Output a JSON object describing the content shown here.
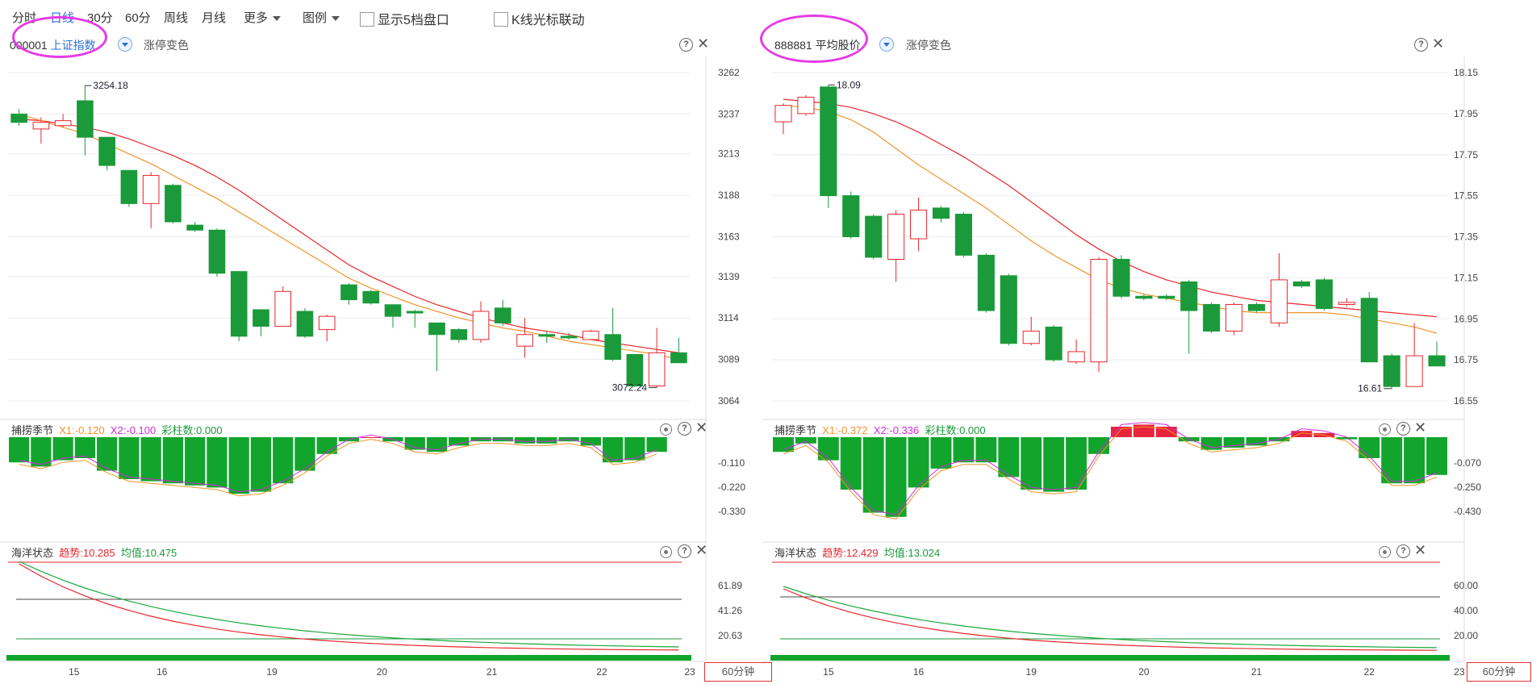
{
  "toolbar": {
    "tabs": [
      "分时",
      "日线",
      "30分",
      "60分",
      "周线",
      "月线"
    ],
    "active_tab": "日线",
    "more_label": "更多",
    "legend_label": "图例",
    "checkbox_depth": "显示5档盘口",
    "checkbox_cursor_link": "K线光标联动"
  },
  "colors": {
    "up": "#e8262d",
    "down": "#1a9a3a",
    "ma_short": "#f0942a",
    "ma_long": "#e8262d",
    "highlight": "#e63be6",
    "accent": "#2a6ed8"
  },
  "left": {
    "code": "000001",
    "name": "上证指数",
    "tag": "涨停变色",
    "y_axis": [
      "3262",
      "3237",
      "3213",
      "3188",
      "3163",
      "3139",
      "3114",
      "3089",
      "3064"
    ],
    "high_label": "3254.18",
    "low_label": "3072.24",
    "osc": {
      "title": "捕捞季节",
      "x1": "X1:-0.120",
      "x2": "X2:-0.100",
      "bars": "彩柱数:0.000",
      "axis": [
        "-0.110",
        "-0.220",
        "-0.330"
      ]
    },
    "ocean": {
      "title": "海洋状态",
      "trend": "趋势:10.285",
      "mean": "均值:10.475",
      "axis": [
        "61.89",
        "41.26",
        "20.63"
      ]
    },
    "x_axis": [
      "15",
      "16",
      "19",
      "20",
      "21",
      "22",
      "23"
    ],
    "period_label": "60分钟"
  },
  "right": {
    "code": "888881",
    "name": "平均股价",
    "tag": "涨停变色",
    "y_axis": [
      "18.15",
      "17.95",
      "17.75",
      "17.55",
      "17.35",
      "17.15",
      "16.95",
      "16.75",
      "16.55"
    ],
    "high_label": "18.09",
    "low_label": "16.61",
    "osc": {
      "title": "捕捞季节",
      "x1": "X1:-0.372",
      "x2": "X2:-0.336",
      "bars": "彩柱数:0.000",
      "axis": [
        "-0.070",
        "-0.250",
        "-0.430"
      ]
    },
    "ocean": {
      "title": "海洋状态",
      "trend": "趋势:12.429",
      "mean": "均值:13.024",
      "axis": [
        "60.00",
        "40.00",
        "20.00"
      ]
    },
    "x_axis": [
      "15",
      "16",
      "19",
      "20",
      "21",
      "22",
      "23"
    ],
    "period_label": "60分钟"
  },
  "chart_data": [
    {
      "type": "candlestick",
      "title": "000001 上证指数",
      "ylim": [
        3064,
        3262
      ],
      "candles": [
        {
          "o": 3237,
          "c": 3232,
          "h": 3240,
          "l": 3230
        },
        {
          "o": 3228,
          "c": 3232,
          "h": 3235,
          "l": 3219
        },
        {
          "o": 3230,
          "c": 3233,
          "h": 3237,
          "l": 3229
        },
        {
          "o": 3245,
          "c": 3223,
          "h": 3254.18,
          "l": 3212
        },
        {
          "o": 3223,
          "c": 3206,
          "h": 3223,
          "l": 3203
        },
        {
          "o": 3203,
          "c": 3183,
          "h": 3203,
          "l": 3181
        },
        {
          "o": 3183,
          "c": 3200,
          "h": 3202,
          "l": 3168
        },
        {
          "o": 3194,
          "c": 3172,
          "h": 3195,
          "l": 3171
        },
        {
          "o": 3170,
          "c": 3167,
          "h": 3172,
          "l": 3166
        },
        {
          "o": 3167,
          "c": 3141,
          "h": 3168,
          "l": 3139
        },
        {
          "o": 3142,
          "c": 3103,
          "h": 3142,
          "l": 3100
        },
        {
          "o": 3119,
          "c": 3109,
          "h": 3119,
          "l": 3103
        },
        {
          "o": 3109,
          "c": 3130,
          "h": 3133,
          "l": 3109
        },
        {
          "o": 3118,
          "c": 3103,
          "h": 3120,
          "l": 3102
        },
        {
          "o": 3107,
          "c": 3115,
          "h": 3116,
          "l": 3100
        },
        {
          "o": 3134,
          "c": 3125,
          "h": 3135,
          "l": 3122
        },
        {
          "o": 3130,
          "c": 3123,
          "h": 3131,
          "l": 3122
        },
        {
          "o": 3122,
          "c": 3115,
          "h": 3122,
          "l": 3108
        },
        {
          "o": 3118,
          "c": 3117,
          "h": 3119,
          "l": 3108
        },
        {
          "o": 3111,
          "c": 3104,
          "h": 3111,
          "l": 3082
        },
        {
          "o": 3107,
          "c": 3101,
          "h": 3108,
          "l": 3099
        },
        {
          "o": 3101,
          "c": 3118,
          "h": 3124,
          "l": 3099
        },
        {
          "o": 3120,
          "c": 3111,
          "h": 3125,
          "l": 3109
        },
        {
          "o": 3097,
          "c": 3104,
          "h": 3114,
          "l": 3090
        },
        {
          "o": 3104,
          "c": 3103,
          "h": 3106,
          "l": 3099
        },
        {
          "o": 3103,
          "c": 3102,
          "h": 3105,
          "l": 3101
        },
        {
          "o": 3101,
          "c": 3106,
          "h": 3107,
          "l": 3101
        },
        {
          "o": 3104,
          "c": 3089,
          "h": 3120,
          "l": 3088
        },
        {
          "o": 3092,
          "c": 3073,
          "h": 3092,
          "l": 3072.24
        },
        {
          "o": 3073,
          "c": 3093,
          "h": 3108,
          "l": 3072
        },
        {
          "o": 3093,
          "c": 3087,
          "h": 3102,
          "l": 3087
        }
      ],
      "ma_short": [
        3237,
        3233,
        3229,
        3225,
        3219,
        3213,
        3207,
        3200,
        3193,
        3186,
        3178,
        3170,
        3162,
        3154,
        3146,
        3138,
        3132,
        3127,
        3122,
        3118,
        3114,
        3111,
        3108,
        3106,
        3103,
        3100,
        3098,
        3096,
        3094,
        3092,
        3089
      ],
      "ma_long": [
        3234,
        3233,
        3231,
        3229,
        3226,
        3222,
        3217,
        3212,
        3206,
        3199,
        3191,
        3182,
        3173,
        3164,
        3155,
        3146,
        3139,
        3133,
        3127,
        3122,
        3118,
        3114,
        3111,
        3108,
        3106,
        3104,
        3101,
        3099,
        3097,
        3095,
        3093
      ]
    },
    {
      "type": "candlestick",
      "title": "888881 平均股价",
      "ylim": [
        16.55,
        18.15
      ],
      "candles": [
        {
          "o": 17.91,
          "c": 17.99,
          "h": 18.0,
          "l": 17.85
        },
        {
          "o": 17.95,
          "c": 18.03,
          "h": 18.04,
          "l": 17.94
        },
        {
          "o": 18.08,
          "c": 17.55,
          "h": 18.09,
          "l": 17.49
        },
        {
          "o": 17.55,
          "c": 17.35,
          "h": 17.57,
          "l": 17.34
        },
        {
          "o": 17.45,
          "c": 17.25,
          "h": 17.46,
          "l": 17.24
        },
        {
          "o": 17.24,
          "c": 17.46,
          "h": 17.48,
          "l": 17.13
        },
        {
          "o": 17.34,
          "c": 17.48,
          "h": 17.54,
          "l": 17.28
        },
        {
          "o": 17.49,
          "c": 17.44,
          "h": 17.5,
          "l": 17.42
        },
        {
          "o": 17.46,
          "c": 17.26,
          "h": 17.47,
          "l": 17.25
        },
        {
          "o": 17.26,
          "c": 16.99,
          "h": 17.27,
          "l": 16.98
        },
        {
          "o": 17.16,
          "c": 16.83,
          "h": 17.17,
          "l": 16.82
        },
        {
          "o": 16.83,
          "c": 16.89,
          "h": 16.96,
          "l": 16.82
        },
        {
          "o": 16.91,
          "c": 16.75,
          "h": 16.92,
          "l": 16.74
        },
        {
          "o": 16.74,
          "c": 16.79,
          "h": 16.85,
          "l": 16.73
        },
        {
          "o": 16.74,
          "c": 17.24,
          "h": 17.25,
          "l": 16.69
        },
        {
          "o": 17.24,
          "c": 17.06,
          "h": 17.26,
          "l": 17.05
        },
        {
          "o": 17.06,
          "c": 17.05,
          "h": 17.07,
          "l": 17.04
        },
        {
          "o": 17.06,
          "c": 17.05,
          "h": 17.07,
          "l": 17.04
        },
        {
          "o": 17.13,
          "c": 16.99,
          "h": 17.14,
          "l": 16.78
        },
        {
          "o": 17.02,
          "c": 16.89,
          "h": 17.03,
          "l": 16.88
        },
        {
          "o": 16.89,
          "c": 17.02,
          "h": 17.03,
          "l": 16.87
        },
        {
          "o": 17.02,
          "c": 16.99,
          "h": 17.03,
          "l": 16.98
        },
        {
          "o": 16.93,
          "c": 17.14,
          "h": 17.27,
          "l": 16.91
        },
        {
          "o": 17.13,
          "c": 17.11,
          "h": 17.14,
          "l": 17.1
        },
        {
          "o": 17.14,
          "c": 17.0,
          "h": 17.15,
          "l": 16.99
        },
        {
          "o": 17.02,
          "c": 17.03,
          "h": 17.05,
          "l": 17.01
        },
        {
          "o": 17.05,
          "c": 16.74,
          "h": 17.08,
          "l": 16.74
        },
        {
          "o": 16.77,
          "c": 16.62,
          "h": 16.78,
          "l": 16.61
        },
        {
          "o": 16.62,
          "c": 16.77,
          "h": 16.93,
          "l": 16.62
        },
        {
          "o": 16.77,
          "c": 16.72,
          "h": 16.84,
          "l": 16.72
        }
      ],
      "ma_short": [
        17.99,
        17.98,
        17.96,
        17.92,
        17.86,
        17.78,
        17.7,
        17.63,
        17.56,
        17.49,
        17.41,
        17.33,
        17.26,
        17.2,
        17.14,
        17.1,
        17.07,
        17.05,
        17.03,
        17.01,
        16.99,
        16.98,
        16.98,
        16.98,
        16.98,
        16.97,
        16.95,
        16.93,
        16.91,
        16.88
      ],
      "ma_long": [
        18.02,
        18.01,
        18.0,
        17.98,
        17.95,
        17.91,
        17.86,
        17.8,
        17.74,
        17.67,
        17.6,
        17.52,
        17.44,
        17.36,
        17.29,
        17.23,
        17.18,
        17.14,
        17.11,
        17.08,
        17.06,
        17.04,
        17.03,
        17.02,
        17.01,
        17.0,
        16.99,
        16.98,
        16.97,
        16.96
      ]
    }
  ]
}
